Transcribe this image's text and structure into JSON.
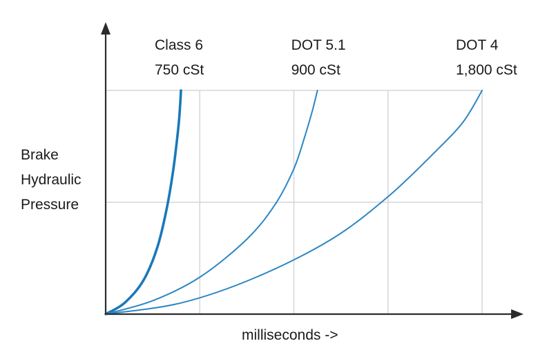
{
  "chart_data": {
    "type": "line",
    "title": "",
    "xlabel": "milliseconds ->",
    "ylabel": [
      "Brake",
      "Hydraulic",
      "Pressure"
    ],
    "xlim": [
      0,
      4
    ],
    "ylim": [
      0,
      2
    ],
    "grid": true,
    "legend": "none",
    "series": [
      {
        "name": "Class 6",
        "name_line2": "750 cSt",
        "color": "#1a78b8",
        "emphasis": "thick",
        "x": [
          0,
          0.2,
          0.4,
          0.55,
          0.65,
          0.72,
          0.77,
          0.79,
          0.8
        ],
        "y": [
          0,
          0.1,
          0.3,
          0.6,
          0.95,
          1.3,
          1.65,
          1.85,
          2.0
        ]
      },
      {
        "name": "DOT 5.1",
        "name_line2": "900 cSt",
        "color": "#2a86c4",
        "emphasis": "normal",
        "x": [
          0,
          0.5,
          1.0,
          1.5,
          1.8,
          2.0,
          2.12,
          2.2,
          2.25
        ],
        "y": [
          0,
          0.12,
          0.33,
          0.67,
          0.98,
          1.3,
          1.6,
          1.83,
          2.0
        ]
      },
      {
        "name": "DOT 4",
        "name_line2": "1,800 cSt",
        "color": "#2a86c4",
        "emphasis": "normal",
        "x": [
          0,
          0.8,
          1.6,
          2.4,
          3.0,
          3.5,
          3.8,
          4.0
        ],
        "y": [
          0,
          0.1,
          0.33,
          0.67,
          1.05,
          1.45,
          1.72,
          2.0
        ]
      }
    ]
  }
}
